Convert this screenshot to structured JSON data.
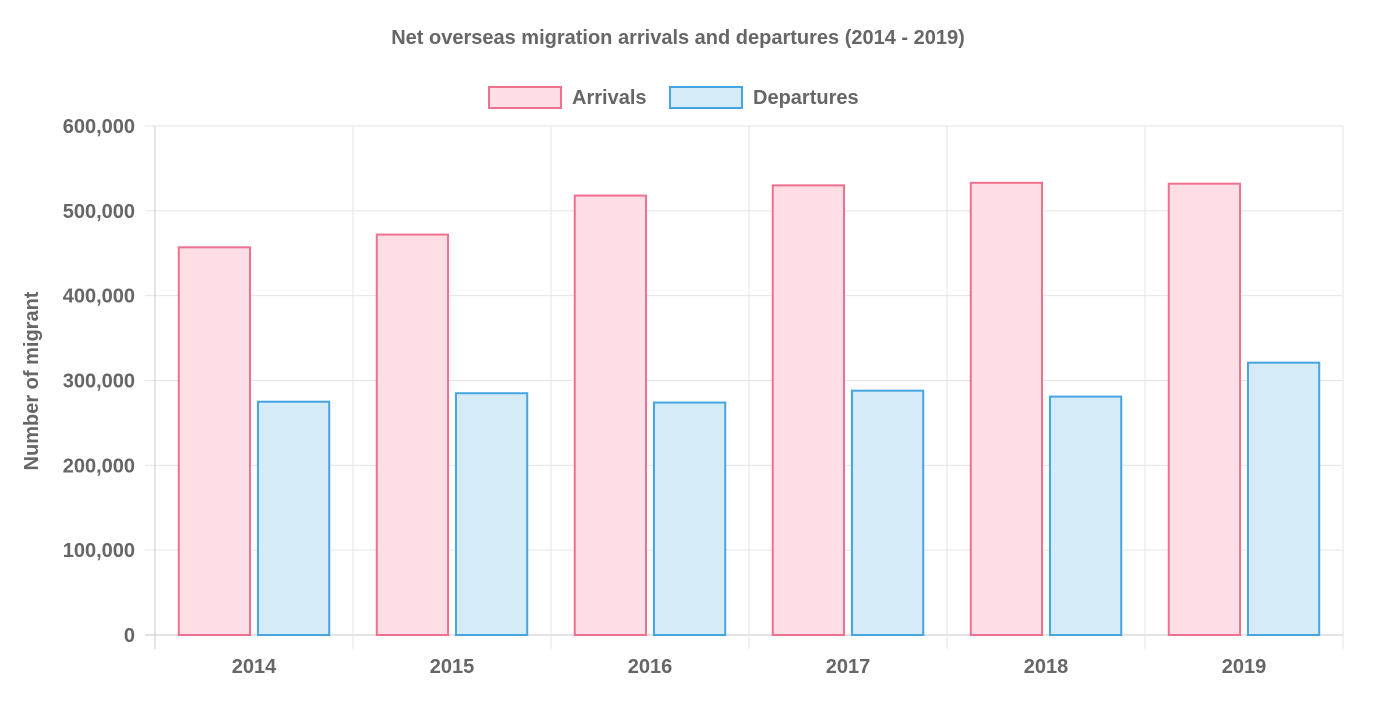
{
  "chart_data": {
    "type": "bar",
    "title": "Net overseas migration arrivals and departures (2014 - 2019)",
    "ylabel": "Number of migrant",
    "xlabel": "",
    "categories": [
      "2014",
      "2015",
      "2016",
      "2017",
      "2018",
      "2019"
    ],
    "ylim": [
      0,
      600000
    ],
    "yticks": [
      "0",
      "100,000",
      "200,000",
      "300,000",
      "400,000",
      "500,000",
      "600,000"
    ],
    "grid": true,
    "legend_position": "top",
    "series": [
      {
        "name": "Arrivals",
        "values": [
          457000,
          472000,
          518000,
          530000,
          533000,
          532000
        ],
        "fill": "#ffdfe5",
        "stroke": "#f0708f"
      },
      {
        "name": "Departures",
        "values": [
          275000,
          285000,
          274000,
          288000,
          281000,
          321000
        ],
        "fill": "#d6ebf8",
        "stroke": "#46a4e0"
      }
    ]
  }
}
